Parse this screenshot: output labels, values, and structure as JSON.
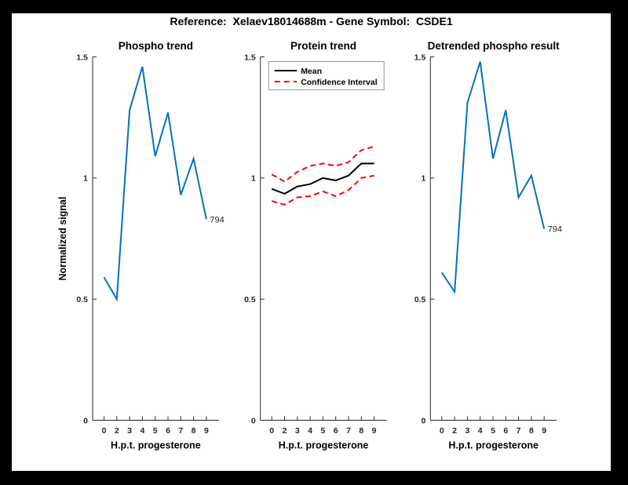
{
  "figure": {
    "title": "Reference:  Xelaev18014688m - Gene Symbol:  CSDE1",
    "background_color": "#000000",
    "canvas_color": "#ffffff",
    "axis_color": "#262626",
    "text_color": "#262626"
  },
  "chart_data": [
    {
      "type": "line",
      "title": "Phospho trend",
      "xlabel": "H.p.t. progesterone",
      "ylabel": "Normalized signal",
      "x_ticklabels": [
        "0",
        "2",
        "3",
        "4",
        "5",
        "6",
        "7",
        "8",
        "9"
      ],
      "y_ticks": [
        0,
        0.5,
        1,
        1.5
      ],
      "y_ticklabels": [
        "0",
        "0.5",
        "1",
        "1.5"
      ],
      "ylim": [
        0,
        1.5
      ],
      "grid": false,
      "legend": null,
      "end_label": "794",
      "series": [
        {
          "name": "phospho-signal",
          "color": "#0072BD",
          "style": "solid",
          "values": [
            0.59,
            0.5,
            1.28,
            1.46,
            1.09,
            1.27,
            0.93,
            1.08,
            0.83
          ]
        }
      ]
    },
    {
      "type": "line",
      "title": "Protein trend",
      "xlabel": "H.p.t. progesterone",
      "ylabel": "",
      "x_ticklabels": [
        "0",
        "2",
        "3",
        "4",
        "5",
        "6",
        "7",
        "8",
        "9"
      ],
      "y_ticks": [
        0,
        0.5,
        1,
        1.5
      ],
      "y_ticklabels": [
        "0",
        "0.5",
        "1",
        "1.5"
      ],
      "ylim": [
        0,
        1.5
      ],
      "grid": false,
      "legend": {
        "position": "northwest",
        "entries": [
          {
            "label": "Mean",
            "color": "#000000",
            "style": "solid"
          },
          {
            "label": "Confidence Interval",
            "color": "#ff0000",
            "style": "dashed"
          }
        ]
      },
      "end_label": null,
      "series": [
        {
          "name": "mean",
          "color": "#000000",
          "style": "solid",
          "values": [
            0.955,
            0.935,
            0.965,
            0.975,
            1.0,
            0.99,
            1.01,
            1.06,
            1.06
          ]
        },
        {
          "name": "confidence-interval-upper",
          "color": "#ff0000",
          "style": "dashed",
          "values": [
            1.015,
            0.985,
            1.025,
            1.05,
            1.06,
            1.05,
            1.065,
            1.115,
            1.13
          ]
        },
        {
          "name": "confidence-interval-lower",
          "color": "#ff0000",
          "style": "dashed",
          "values": [
            0.905,
            0.89,
            0.92,
            0.925,
            0.945,
            0.925,
            0.95,
            1.0,
            1.01
          ]
        }
      ]
    },
    {
      "type": "line",
      "title": "Detrended phospho result",
      "xlabel": "H.p.t. progesterone",
      "ylabel": "",
      "x_ticklabels": [
        "0",
        "2",
        "3",
        "4",
        "5",
        "6",
        "7",
        "8",
        "9"
      ],
      "y_ticks": [
        0,
        0.5,
        1,
        1.5
      ],
      "y_ticklabels": [
        "0",
        "0.5",
        "1",
        "1.5"
      ],
      "ylim": [
        0,
        1.5
      ],
      "grid": false,
      "legend": null,
      "end_label": "794",
      "series": [
        {
          "name": "detrended-phospho-signal",
          "color": "#0072BD",
          "style": "solid",
          "values": [
            0.61,
            0.53,
            1.31,
            1.48,
            1.08,
            1.28,
            0.92,
            1.01,
            0.79
          ]
        }
      ]
    }
  ]
}
